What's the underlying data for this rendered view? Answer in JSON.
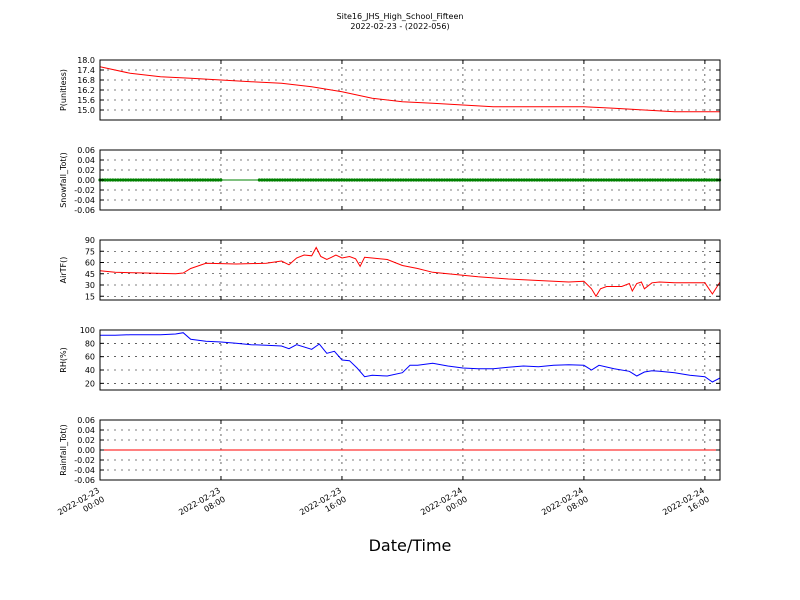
{
  "figure": {
    "title": "Site16_JHS_High_School_Fifteen",
    "subtitle": "2022-02-23 - (2022-056)",
    "xlabel": "Date/Time",
    "x_ticks": [
      {
        "hours": 0,
        "line1": "2022-02-23",
        "line2": "00:00"
      },
      {
        "hours": 8,
        "line1": "2022-02-23",
        "line2": "08:00"
      },
      {
        "hours": 16,
        "line1": "2022-02-23",
        "line2": "16:00"
      },
      {
        "hours": 24,
        "line1": "2022-02-24",
        "line2": "00:00"
      },
      {
        "hours": 32,
        "line1": "2022-02-24",
        "line2": "08:00"
      },
      {
        "hours": 40,
        "line1": "2022-02-24",
        "line2": "16:00"
      }
    ],
    "x_range_hours": [
      0,
      41
    ]
  },
  "chart_data": [
    {
      "type": "line",
      "ylabel": "P(unitless)",
      "ylim": [
        14.4,
        18.0
      ],
      "yticks": [
        15.0,
        15.6,
        16.2,
        16.8,
        17.4,
        18.0
      ],
      "tick_decimals": 1,
      "color": "#ff0000",
      "grid": true,
      "x": [
        0,
        2,
        4,
        6,
        8,
        10,
        12,
        14,
        16,
        18,
        20,
        22,
        24,
        26,
        28,
        30,
        32,
        34,
        36,
        38,
        40,
        41
      ],
      "y": [
        17.6,
        17.2,
        17.0,
        16.9,
        16.8,
        16.7,
        16.6,
        16.4,
        16.1,
        15.7,
        15.5,
        15.4,
        15.3,
        15.2,
        15.2,
        15.2,
        15.2,
        15.1,
        15.0,
        14.9,
        14.9,
        14.9
      ]
    },
    {
      "type": "scatter",
      "ylabel": "Snowfall_Tot()",
      "ylim": [
        -0.06,
        0.06
      ],
      "yticks": [
        -0.06,
        -0.04,
        -0.02,
        0.0,
        0.02,
        0.04,
        0.06
      ],
      "tick_decimals": 2,
      "color": "#008000",
      "grid": true,
      "x_range": [
        0,
        41
      ],
      "y_value": 0.0,
      "marker_spacing_hours": 0.17,
      "gap": [
        8,
        10.5
      ]
    },
    {
      "type": "line",
      "ylabel": "AirTF()",
      "ylim": [
        10,
        90
      ],
      "yticks": [
        15,
        30,
        45,
        60,
        75,
        90
      ],
      "tick_decimals": 0,
      "color": "#ff0000",
      "grid": true,
      "x": [
        0,
        1,
        3,
        5,
        5.5,
        6,
        7,
        9,
        11,
        12,
        12.5,
        13,
        13.5,
        14,
        14.3,
        14.6,
        15,
        15.3,
        15.6,
        16,
        16.5,
        16.9,
        17.2,
        17.5,
        18,
        19,
        20,
        21,
        22,
        24,
        25,
        27,
        29,
        31,
        32,
        32.5,
        32.8,
        33.1,
        33.5,
        34.5,
        35,
        35.2,
        35.5,
        35.8,
        36,
        36.5,
        37,
        38,
        39,
        40,
        40.5,
        41
      ],
      "y": [
        49,
        47,
        46,
        45,
        46,
        52,
        59,
        58,
        59,
        62,
        57,
        66,
        70,
        69,
        80,
        68,
        64,
        67,
        70,
        66,
        68,
        65,
        55,
        67,
        66,
        64,
        56,
        52,
        47,
        43,
        41,
        38,
        36,
        34,
        35,
        25,
        15,
        25,
        28,
        28,
        32,
        22,
        32,
        34,
        25,
        33,
        34,
        33,
        33,
        33,
        18,
        34
      ]
    },
    {
      "type": "line",
      "ylabel": "RH(%)",
      "ylim": [
        10,
        100
      ],
      "yticks": [
        20,
        40,
        60,
        80,
        100
      ],
      "tick_decimals": 0,
      "color": "#0000ff",
      "grid": true,
      "x": [
        0,
        1,
        2,
        3,
        4,
        5,
        5.5,
        6,
        7,
        8,
        9,
        10,
        11,
        12,
        12.5,
        13,
        14,
        14.5,
        15,
        15.5,
        16,
        16.5,
        17,
        17.5,
        18,
        19,
        20,
        20.5,
        21,
        22,
        23,
        24,
        25,
        26,
        27,
        28,
        29,
        30,
        31,
        32,
        32.5,
        33,
        34,
        35,
        35.5,
        36,
        36.5,
        37,
        38,
        39,
        40,
        40.5,
        41
      ],
      "y": [
        92,
        92,
        93,
        93,
        93,
        94,
        96,
        86,
        83,
        82,
        80,
        78,
        77,
        76,
        72,
        78,
        71,
        79,
        65,
        68,
        55,
        54,
        43,
        30,
        32,
        31,
        36,
        47,
        47,
        50,
        46,
        43,
        42,
        42,
        44,
        46,
        45,
        47,
        48,
        47,
        40,
        47,
        42,
        38,
        31,
        37,
        39,
        38,
        36,
        32,
        30,
        22,
        28
      ]
    },
    {
      "type": "line",
      "ylabel": "Rainfall_Tot()",
      "ylim": [
        -0.06,
        0.06
      ],
      "yticks": [
        -0.06,
        -0.04,
        -0.02,
        0.0,
        0.02,
        0.04,
        0.06
      ],
      "tick_decimals": 2,
      "color": "#ff0000",
      "grid": true,
      "x": [
        0,
        41
      ],
      "y": [
        0.0,
        0.0
      ]
    }
  ]
}
